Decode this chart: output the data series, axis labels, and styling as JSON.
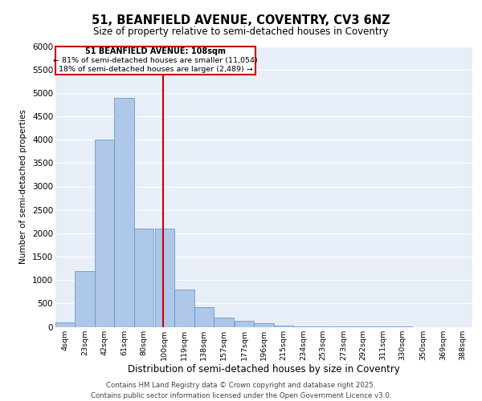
{
  "title_line1": "51, BEANFIELD AVENUE, COVENTRY, CV3 6NZ",
  "title_line2": "Size of property relative to semi-detached houses in Coventry",
  "xlabel": "Distribution of semi-detached houses by size in Coventry",
  "ylabel": "Number of semi-detached properties",
  "footer_line1": "Contains HM Land Registry data © Crown copyright and database right 2025.",
  "footer_line2": "Contains public sector information licensed under the Open Government Licence v3.0.",
  "property_size": 108,
  "property_label": "51 BEANFIELD AVENUE: 108sqm",
  "pct_smaller": 81,
  "count_smaller": 11054,
  "pct_larger": 18,
  "count_larger": 2489,
  "bin_labels": [
    "4sqm",
    "23sqm",
    "42sqm",
    "61sqm",
    "80sqm",
    "100sqm",
    "119sqm",
    "138sqm",
    "157sqm",
    "177sqm",
    "196sqm",
    "215sqm",
    "234sqm",
    "253sqm",
    "273sqm",
    "292sqm",
    "311sqm",
    "330sqm",
    "350sqm",
    "369sqm",
    "388sqm"
  ],
  "bin_edges": [
    4,
    23,
    42,
    61,
    80,
    100,
    119,
    138,
    157,
    177,
    196,
    215,
    234,
    253,
    273,
    292,
    311,
    330,
    350,
    369,
    388
  ],
  "bar_heights": [
    100,
    1200,
    4000,
    4900,
    2100,
    2100,
    800,
    420,
    200,
    130,
    80,
    30,
    15,
    5,
    3,
    2,
    1,
    1,
    0,
    0,
    0
  ],
  "bar_color": "#aec6e8",
  "bar_edge_color": "#5b90c0",
  "vline_color": "#cc0000",
  "vline_x": 108,
  "annotation_box_color": "#cc0000",
  "background_color": "#e8eef7",
  "ylim": [
    0,
    6000
  ],
  "yticks": [
    0,
    500,
    1000,
    1500,
    2000,
    2500,
    3000,
    3500,
    4000,
    4500,
    5000,
    5500,
    6000
  ]
}
